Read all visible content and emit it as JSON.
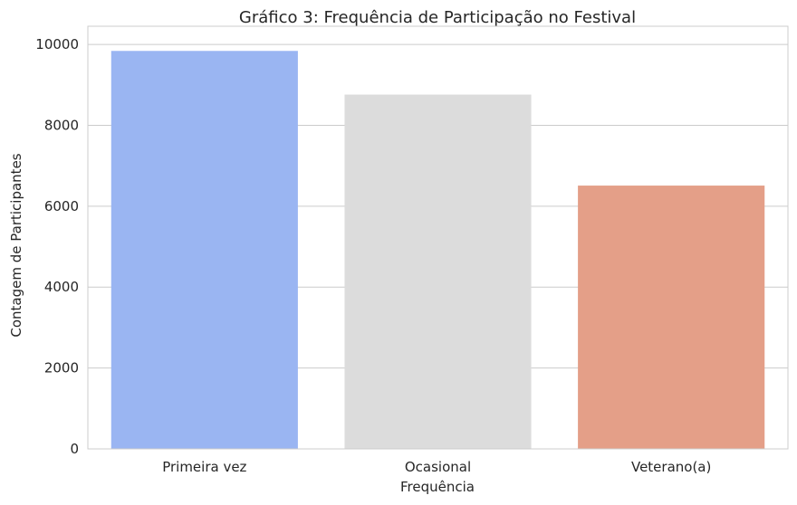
{
  "chart_data": {
    "type": "bar",
    "title": "Gráfico 3: Frequência de Participação no Festival",
    "xlabel": "Frequência",
    "ylabel": "Contagem de Participantes",
    "categories": [
      "Primeira vez",
      "Ocasional",
      "Veterano(a)"
    ],
    "values": [
      9840,
      8760,
      6510
    ],
    "colors": [
      "#9ab5f2",
      "#dcdcdc",
      "#e49f88"
    ],
    "ylim": [
      0,
      10450
    ],
    "yticks": [
      0,
      2000,
      4000,
      6000,
      8000,
      10000
    ],
    "grid": true,
    "legend": "none"
  }
}
